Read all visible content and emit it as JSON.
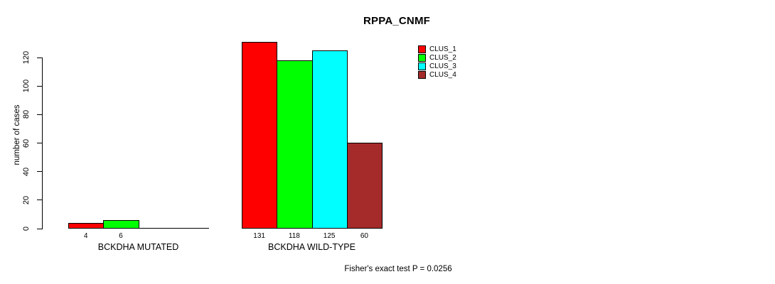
{
  "title": "RPPA_CNMF",
  "footnote": "Fisher's exact test P = 0.0256",
  "colors": {
    "clus1": "#FF0000",
    "clus2": "#00FF00",
    "clus3": "#00FFFF",
    "clus4": "#A52A2A",
    "axis": "#000000",
    "background": "#FFFFFF"
  },
  "legend": [
    {
      "label": "CLUS_1",
      "color": "#FF0000"
    },
    {
      "label": "CLUS_2",
      "color": "#00FF00"
    },
    {
      "label": "CLUS_3",
      "color": "#00FFFF"
    },
    {
      "label": "CLUS_4",
      "color": "#A52A2A"
    }
  ],
  "chart_data": {
    "type": "bar",
    "title": "RPPA_CNMF",
    "xlabel": "",
    "ylabel": "number of cases",
    "ylim": [
      0,
      120
    ],
    "yticks": [
      0,
      20,
      40,
      60,
      80,
      100,
      120
    ],
    "grid": false,
    "legend_position": "top-right",
    "categories": [
      "BCKDHA MUTATED",
      "BCKDHA WILD-TYPE"
    ],
    "series": [
      {
        "name": "CLUS_1",
        "color": "#FF0000",
        "values": [
          4,
          131
        ]
      },
      {
        "name": "CLUS_2",
        "color": "#00FF00",
        "values": [
          6,
          118
        ]
      },
      {
        "name": "CLUS_3",
        "color": "#00FFFF",
        "values": [
          0,
          125
        ]
      },
      {
        "name": "CLUS_4",
        "color": "#A52A2A",
        "values": [
          0,
          60
        ]
      }
    ],
    "bar_labels": [
      [
        "4",
        "6",
        "",
        ""
      ],
      [
        "131",
        "118",
        "125",
        "60"
      ]
    ],
    "annotation": "Fisher's exact test P = 0.0256"
  }
}
